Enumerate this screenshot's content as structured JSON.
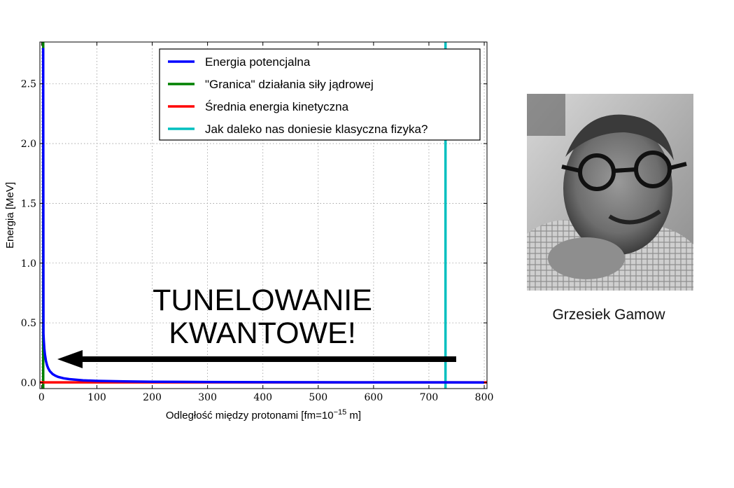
{
  "chart_data": {
    "type": "line",
    "xlabel": "Odległość między protonami [fm=10",
    "xlabel_sup": "−15",
    "xlabel_tail": " m]",
    "ylabel": "Energia [MeV]",
    "xlim": [
      -3,
      805
    ],
    "ylim": [
      -0.05,
      2.85
    ],
    "xticks": [
      0,
      100,
      200,
      300,
      400,
      500,
      600,
      700,
      800
    ],
    "xtick_labels": [
      "0",
      "100",
      "200",
      "300",
      "400",
      "500",
      "600",
      "700",
      "800"
    ],
    "yticks": [
      0.0,
      0.5,
      1.0,
      1.5,
      2.0,
      2.5
    ],
    "ytick_labels": [
      "0.0",
      "0.5",
      "1.0",
      "1.5",
      "2.0",
      "2.5"
    ],
    "grid": true,
    "legend_position": "top-right",
    "series": [
      {
        "name": "Energia potencjalna",
        "color": "#0000ff",
        "kind": "curve",
        "x": [
          3.0,
          3.5,
          4,
          5,
          6,
          8,
          10,
          12,
          15,
          20,
          25,
          30,
          40,
          50,
          75,
          100,
          150,
          200,
          300,
          400,
          500,
          600,
          700,
          800
        ],
        "y": [
          2.8,
          0.41,
          0.36,
          0.288,
          0.24,
          0.18,
          0.144,
          0.12,
          0.096,
          0.072,
          0.0576,
          0.048,
          0.036,
          0.0288,
          0.0192,
          0.0144,
          0.0096,
          0.0072,
          0.0048,
          0.0036,
          0.00288,
          0.0024,
          0.00206,
          0.0018
        ]
      },
      {
        "name": "\"Granica\" działania siły jądrowej",
        "color": "#008000",
        "kind": "vline",
        "x": 3
      },
      {
        "name": "Średnia energia kinetyczna",
        "color": "#ff0000",
        "kind": "hline",
        "y": 0.002
      },
      {
        "name": "Jak daleko nas doniesie klasyczna fizyka?",
        "color": "#00bfbf",
        "kind": "vline",
        "x": 730
      }
    ],
    "annotation": {
      "lines": [
        "TUNELOWANIE",
        "KWANTOWE!"
      ]
    },
    "arrow": {
      "from_x": 750,
      "to_x": 25,
      "y": 0.15,
      "color": "#000000"
    }
  },
  "photo": {
    "caption": "Grzesiek Gamow"
  }
}
